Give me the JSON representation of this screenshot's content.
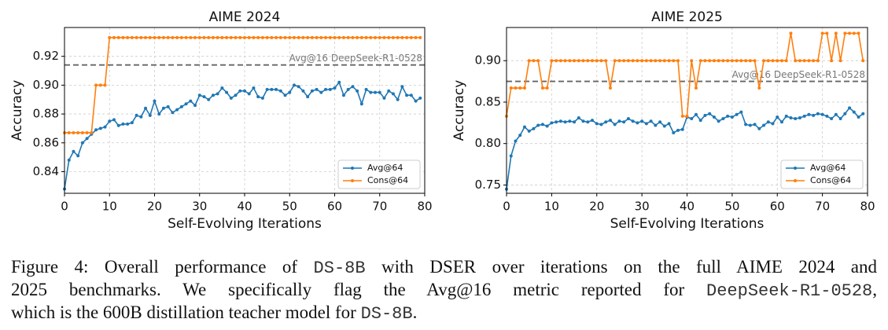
{
  "chart_data": [
    {
      "type": "line",
      "title": "AIME 2024",
      "x_label": "Self-Evolving Iterations",
      "y_label": "Accuracy",
      "x": [
        0,
        1,
        2,
        3,
        4,
        5,
        6,
        7,
        8,
        9,
        10,
        11,
        12,
        13,
        14,
        15,
        16,
        17,
        18,
        19,
        20,
        21,
        22,
        23,
        24,
        25,
        26,
        27,
        28,
        29,
        30,
        31,
        32,
        33,
        34,
        35,
        36,
        37,
        38,
        39,
        40,
        41,
        42,
        43,
        44,
        45,
        46,
        47,
        48,
        49,
        50,
        51,
        52,
        53,
        54,
        55,
        56,
        57,
        58,
        59,
        60,
        61,
        62,
        63,
        64,
        65,
        66,
        67,
        68,
        69,
        70,
        71,
        72,
        73,
        74,
        75,
        76,
        77,
        78,
        79
      ],
      "series": [
        {
          "name": "Avg@64",
          "color": "#1f77b4",
          "values": [
            0.828,
            0.848,
            0.854,
            0.851,
            0.86,
            0.863,
            0.866,
            0.869,
            0.87,
            0.871,
            0.875,
            0.876,
            0.872,
            0.873,
            0.873,
            0.874,
            0.879,
            0.878,
            0.884,
            0.879,
            0.889,
            0.88,
            0.884,
            0.885,
            0.881,
            0.883,
            0.885,
            0.887,
            0.889,
            0.886,
            0.893,
            0.892,
            0.89,
            0.893,
            0.894,
            0.898,
            0.895,
            0.891,
            0.893,
            0.896,
            0.896,
            0.894,
            0.898,
            0.892,
            0.891,
            0.897,
            0.897,
            0.897,
            0.896,
            0.893,
            0.895,
            0.9,
            0.899,
            0.896,
            0.892,
            0.896,
            0.897,
            0.895,
            0.897,
            0.897,
            0.898,
            0.902,
            0.893,
            0.897,
            0.899,
            0.896,
            0.887,
            0.897,
            0.895,
            0.895,
            0.895,
            0.891,
            0.896,
            0.894,
            0.89,
            0.899,
            0.893,
            0.893,
            0.889,
            0.891
          ]
        },
        {
          "name": "Cons@64",
          "color": "#ff7f0e",
          "values": [
            0.867,
            0.867,
            0.867,
            0.867,
            0.867,
            0.867,
            0.867,
            0.9,
            0.9,
            0.9,
            0.933,
            0.933,
            0.933,
            0.933,
            0.933,
            0.933,
            0.933,
            0.933,
            0.933,
            0.933,
            0.933,
            0.933,
            0.933,
            0.933,
            0.933,
            0.933,
            0.933,
            0.933,
            0.933,
            0.933,
            0.933,
            0.933,
            0.933,
            0.933,
            0.933,
            0.933,
            0.933,
            0.933,
            0.933,
            0.933,
            0.933,
            0.933,
            0.933,
            0.933,
            0.933,
            0.933,
            0.933,
            0.933,
            0.933,
            0.933,
            0.933,
            0.933,
            0.933,
            0.933,
            0.933,
            0.933,
            0.933,
            0.933,
            0.933,
            0.933,
            0.933,
            0.933,
            0.933,
            0.933,
            0.933,
            0.933,
            0.933,
            0.933,
            0.933,
            0.933,
            0.933,
            0.933,
            0.933,
            0.933,
            0.933,
            0.933,
            0.933,
            0.933,
            0.933,
            0.933
          ]
        }
      ],
      "reference_line": {
        "value": 0.914,
        "label": "Avg@16 DeepSeek-R1-0528"
      },
      "xlim": [
        0,
        80
      ],
      "xticks": [
        0,
        10,
        20,
        30,
        40,
        50,
        60,
        70,
        80
      ],
      "ylim": [
        0.825,
        0.94
      ],
      "yticks": [
        0.84,
        0.86,
        0.88,
        {
          "value": 0.9,
          "label": "0.90"
        },
        0.92
      ],
      "grid": true,
      "legend": "lower right"
    },
    {
      "type": "line",
      "title": "AIME 2025",
      "x_label": "Self-Evolving Iterations",
      "y_label": "Accuracy",
      "x": [
        0,
        1,
        2,
        3,
        4,
        5,
        6,
        7,
        8,
        9,
        10,
        11,
        12,
        13,
        14,
        15,
        16,
        17,
        18,
        19,
        20,
        21,
        22,
        23,
        24,
        25,
        26,
        27,
        28,
        29,
        30,
        31,
        32,
        33,
        34,
        35,
        36,
        37,
        38,
        39,
        40,
        41,
        42,
        43,
        44,
        45,
        46,
        47,
        48,
        49,
        50,
        51,
        52,
        53,
        54,
        55,
        56,
        57,
        58,
        59,
        60,
        61,
        62,
        63,
        64,
        65,
        66,
        67,
        68,
        69,
        70,
        71,
        72,
        73,
        74,
        75,
        76,
        77,
        78,
        79
      ],
      "series": [
        {
          "name": "Avg@64",
          "color": "#1f77b4",
          "values": [
            0.745,
            0.785,
            0.803,
            0.81,
            0.82,
            0.815,
            0.818,
            0.822,
            0.823,
            0.821,
            0.825,
            0.826,
            0.827,
            0.826,
            0.827,
            0.826,
            0.831,
            0.827,
            0.826,
            0.828,
            0.824,
            0.823,
            0.826,
            0.828,
            0.823,
            0.827,
            0.826,
            0.83,
            0.827,
            0.825,
            0.827,
            0.824,
            0.827,
            0.822,
            0.826,
            0.821,
            0.824,
            0.813,
            0.816,
            0.817,
            0.832,
            0.83,
            0.835,
            0.828,
            0.834,
            0.836,
            0.832,
            0.827,
            0.83,
            0.833,
            0.832,
            0.835,
            0.838,
            0.823,
            0.822,
            0.823,
            0.818,
            0.822,
            0.826,
            0.824,
            0.832,
            0.826,
            0.833,
            0.831,
            0.83,
            0.831,
            0.833,
            0.835,
            0.834,
            0.836,
            0.835,
            0.833,
            0.83,
            0.835,
            0.83,
            0.836,
            0.843,
            0.838,
            0.832,
            0.836
          ]
        },
        {
          "name": "Cons@64",
          "color": "#ff7f0e",
          "values": [
            0.833,
            0.867,
            0.867,
            0.867,
            0.867,
            0.9,
            0.9,
            0.9,
            0.867,
            0.867,
            0.9,
            0.9,
            0.9,
            0.9,
            0.9,
            0.9,
            0.9,
            0.9,
            0.9,
            0.9,
            0.9,
            0.9,
            0.9,
            0.867,
            0.9,
            0.9,
            0.9,
            0.9,
            0.9,
            0.9,
            0.9,
            0.9,
            0.9,
            0.9,
            0.9,
            0.9,
            0.9,
            0.9,
            0.9,
            0.833,
            0.833,
            0.9,
            0.867,
            0.9,
            0.9,
            0.9,
            0.9,
            0.9,
            0.9,
            0.9,
            0.9,
            0.9,
            0.9,
            0.9,
            0.9,
            0.9,
            0.867,
            0.9,
            0.9,
            0.9,
            0.9,
            0.9,
            0.9,
            0.933,
            0.9,
            0.9,
            0.9,
            0.9,
            0.9,
            0.9,
            0.933,
            0.933,
            0.9,
            0.933,
            0.9,
            0.933,
            0.933,
            0.933,
            0.933,
            0.9
          ]
        }
      ],
      "reference_line": {
        "value": 0.875,
        "label": "Avg@16 DeepSeek-R1-0528"
      },
      "xlim": [
        0,
        80
      ],
      "xticks": [
        0,
        10,
        20,
        30,
        40,
        50,
        60,
        70,
        80
      ],
      "ylim": [
        0.74,
        0.94
      ],
      "yticks": [
        0.75,
        {
          "value": 0.8,
          "label": "0.80"
        },
        0.85,
        {
          "value": 0.9,
          "label": "0.90"
        }
      ],
      "grid": true,
      "legend": "lower right"
    }
  ],
  "caption": {
    "lines": [
      [
        {
          "text": "Figure 4: Overall performance of ",
          "mono": false
        },
        {
          "text": "DS-8B",
          "mono": true
        },
        {
          "text": " with DSER over iterations on the full AIME 2024 and",
          "mono": false
        }
      ],
      [
        {
          "text": "2025 benchmarks. We specifically flag the Avg@16 metric reported for ",
          "mono": false
        },
        {
          "text": "DeepSeek-R1-0528",
          "mono": true
        },
        {
          "text": ",",
          "mono": false
        }
      ],
      [
        {
          "text": "which is the 600B distillation teacher model for ",
          "mono": false
        },
        {
          "text": "DS-8B",
          "mono": true
        },
        {
          "text": ".",
          "mono": false
        }
      ]
    ]
  }
}
